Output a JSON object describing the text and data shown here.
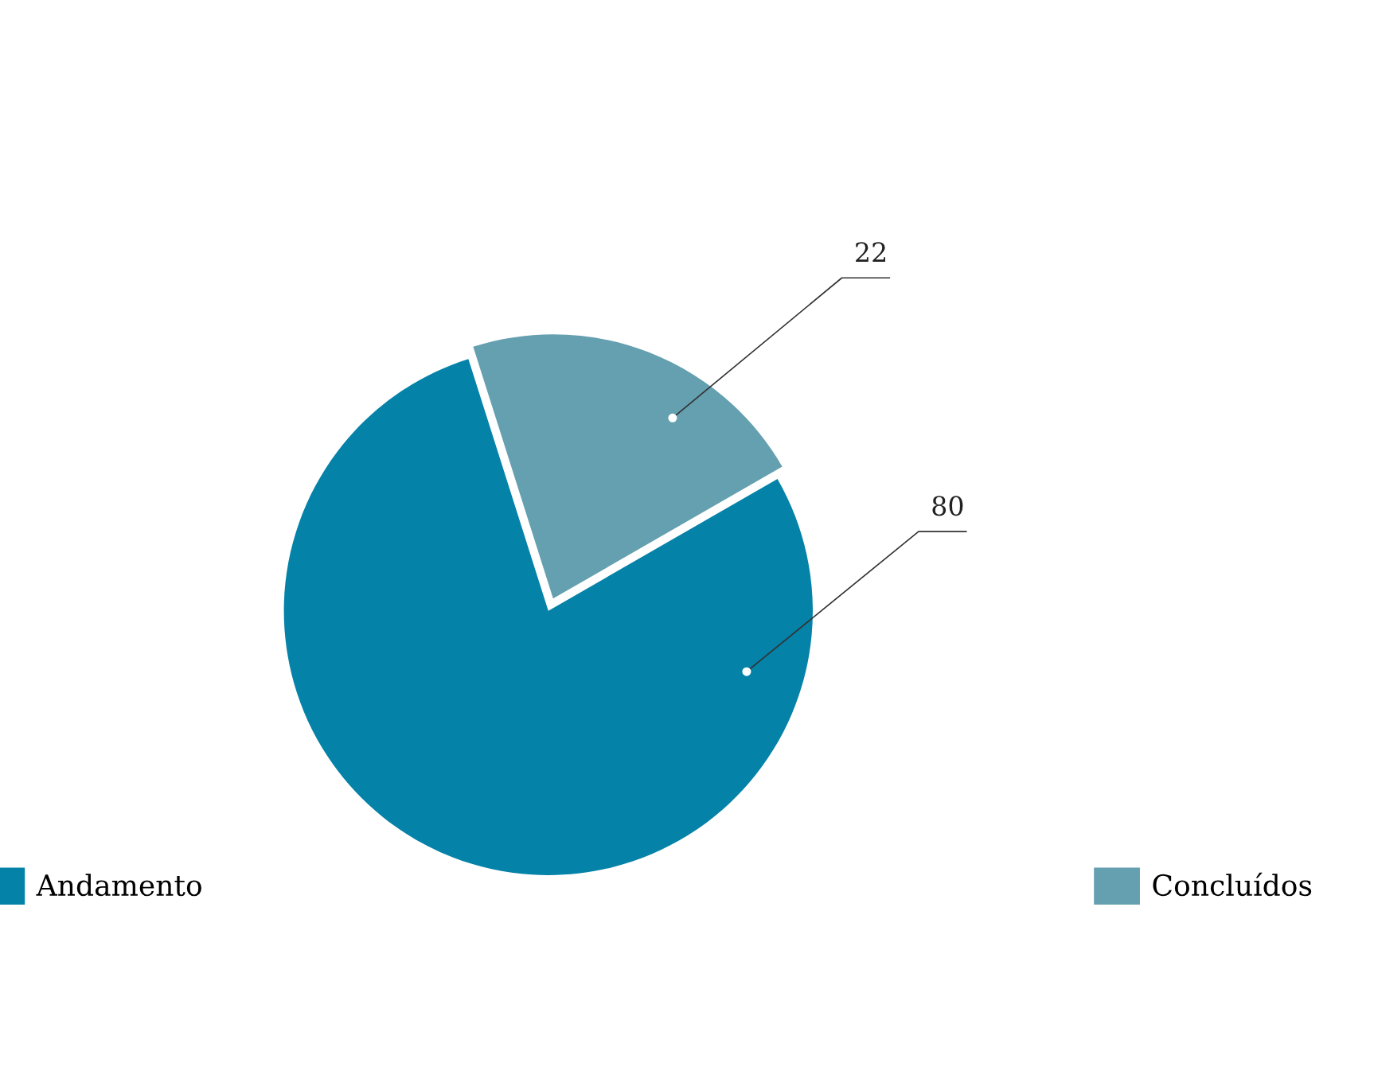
{
  "chart_data": {
    "type": "pie",
    "categories": [
      "Andamento",
      "Concluídos"
    ],
    "values": [
      80,
      22
    ],
    "colors": [
      "#0482a8",
      "#64a0b0"
    ],
    "data_labels": true,
    "legend": "bottom"
  }
}
